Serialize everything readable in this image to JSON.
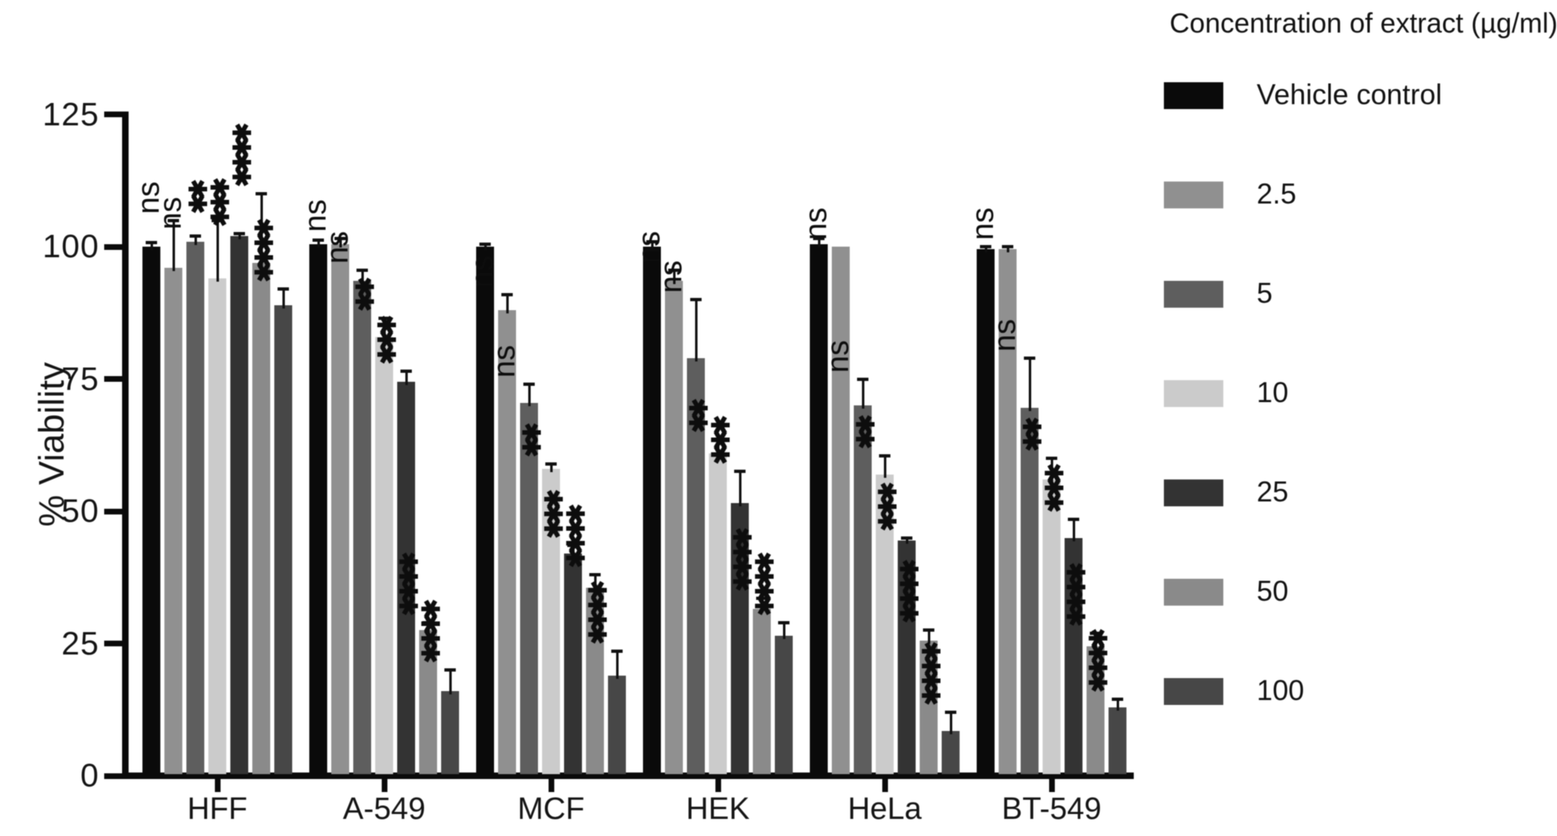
{
  "figure": {
    "ylabel": "% Viability",
    "legend_title": "Concentration of extract (µg/ml)",
    "background_color": "#ffffff",
    "axis_color": "#0a0a0a"
  },
  "chart_data": {
    "type": "bar",
    "title": "",
    "xlabel": "",
    "ylabel": "% Viability",
    "ylim": [
      0,
      125
    ],
    "yticks": [
      0,
      25,
      50,
      75,
      100,
      125
    ],
    "grid": false,
    "legend_position": "right",
    "legend_title": "Concentration of extract (µg/ml)",
    "categories": [
      "HFF",
      "A-549",
      "MCF",
      "HEK",
      "HeLa",
      "BT-549"
    ],
    "series": [
      {
        "name": "Vehicle control",
        "color": "#0a0a0a",
        "values": [
          100,
          100.5,
          100,
          100,
          100.5,
          99.5
        ],
        "upper_errors": [
          0.8,
          0.8,
          0.5,
          1,
          1,
          0.5
        ],
        "significance": [
          "",
          "",
          "",
          "",
          "",
          ""
        ]
      },
      {
        "name": "2.5",
        "color": "#909090",
        "values": [
          96,
          100.5,
          88,
          93.5,
          100,
          99.5
        ],
        "upper_errors": [
          9,
          1,
          3,
          2,
          0,
          0.5
        ],
        "significance": [
          "ns",
          "ns",
          "ns",
          "ns",
          "ns",
          "ns"
        ]
      },
      {
        "name": "5",
        "color": "#5e5e5e",
        "values": [
          101,
          93.5,
          70.5,
          79,
          70,
          69.5
        ],
        "upper_errors": [
          1,
          2,
          3.5,
          11,
          5,
          9.5
        ],
        "significance": [
          "ns",
          "ns",
          "ns",
          "ns",
          "ns",
          "ns"
        ]
      },
      {
        "name": "10",
        "color": "#cbcbcb",
        "values": [
          94,
          83,
          58,
          61,
          57,
          56
        ],
        "upper_errors": [
          11,
          3.5,
          1,
          2.5,
          3.5,
          4
        ],
        "significance": [
          "**",
          "**",
          "**",
          "**",
          "**",
          "**"
        ]
      },
      {
        "name": "25",
        "color": "#333333",
        "values": [
          102,
          74.5,
          42,
          51.5,
          44.5,
          45
        ],
        "upper_errors": [
          0.5,
          2,
          1.5,
          6,
          0.5,
          3.5
        ],
        "significance": [
          "***",
          "***",
          "***",
          "***",
          "***",
          "***"
        ]
      },
      {
        "name": "50",
        "color": "#8a8a8a",
        "values": [
          97,
          27.5,
          35.5,
          31.5,
          25.5,
          24.5
        ],
        "upper_errors": [
          13,
          1.5,
          2.5,
          2,
          2,
          2.5
        ],
        "significance": [
          "****",
          "****",
          "****",
          "****",
          "****",
          "****"
        ]
      },
      {
        "name": "100",
        "color": "#474747",
        "values": [
          89,
          16,
          19,
          26.5,
          8.5,
          13
        ],
        "upper_errors": [
          3,
          4,
          4.5,
          2.5,
          3.5,
          1.5
        ],
        "significance": [
          "****",
          "****",
          "****",
          "****",
          "****",
          "****"
        ]
      }
    ]
  }
}
